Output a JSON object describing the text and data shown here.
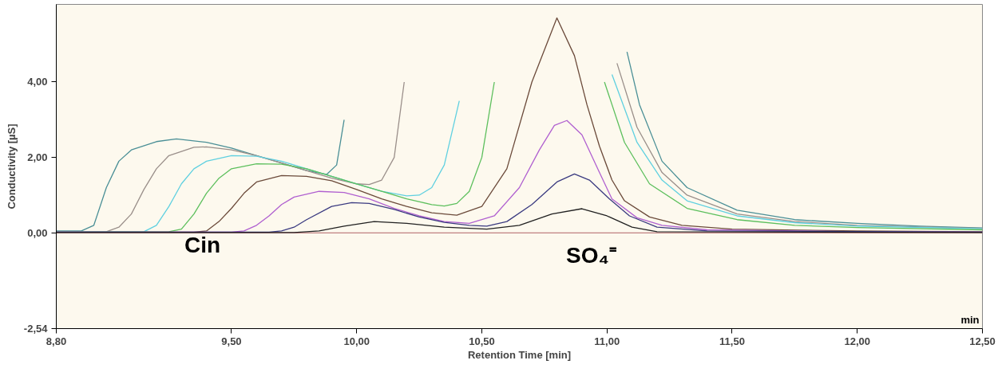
{
  "chart_data": {
    "type": "line",
    "xlabel": "Retention Time [min]",
    "ylabel": "Conductivity [µS]",
    "xlim": [
      8.8,
      12.5
    ],
    "ylim": [
      -2.54,
      6.06
    ],
    "xticks": [
      {
        "value": 8.8,
        "label": "8,80"
      },
      {
        "value": 9.5,
        "label": "9,50"
      },
      {
        "value": 10.0,
        "label": "10,00"
      },
      {
        "value": 10.5,
        "label": "10,50"
      },
      {
        "value": 11.0,
        "label": "11,00"
      },
      {
        "value": 11.5,
        "label": "11,50"
      },
      {
        "value": 12.0,
        "label": "12,00"
      },
      {
        "value": 12.5,
        "label": "12,50"
      }
    ],
    "yticks": [
      {
        "value": -2.54,
        "label": "-2,54"
      },
      {
        "value": 0,
        "label": "0,00"
      },
      {
        "value": 2,
        "label": "2,00"
      },
      {
        "value": 4,
        "label": "4,00"
      }
    ],
    "grid": false,
    "marker": "none",
    "line_style": "solid",
    "annotations": [
      "Cin",
      "SO₄⁼",
      "min"
    ],
    "series": [
      {
        "color": "#c08080",
        "x": [
          8.8,
          12.5
        ],
        "values": [
          0,
          0
        ]
      },
      {
        "color": "#4a8f96",
        "x": [
          8.8,
          8.9,
          8.95,
          9.0,
          9.05,
          9.1,
          9.2,
          9.28,
          9.4,
          9.5,
          9.6,
          9.7,
          9.8,
          9.88,
          9.92,
          9.95,
          9.97,
          10.0,
          10.9,
          11.03,
          11.08,
          11.13,
          11.22,
          11.32,
          11.52,
          11.75,
          12.0,
          12.25,
          12.5
        ],
        "values": [
          0.05,
          0.05,
          0.2,
          1.2,
          1.9,
          2.2,
          2.42,
          2.49,
          2.4,
          2.25,
          2.05,
          1.85,
          1.65,
          1.55,
          1.8,
          3.0,
          null,
          null,
          null,
          null,
          4.8,
          3.4,
          1.9,
          1.2,
          0.6,
          0.35,
          0.25,
          0.18,
          0.13
        ]
      },
      {
        "color": "#9a8f8a",
        "x": [
          8.8,
          9.0,
          9.05,
          9.1,
          9.15,
          9.2,
          9.25,
          9.35,
          9.4,
          9.5,
          9.6,
          9.7,
          9.8,
          9.9,
          10.0,
          10.05,
          10.1,
          10.15,
          10.19,
          10.21,
          10.5,
          10.99,
          11.04,
          11.12,
          11.22,
          11.32,
          11.52,
          11.75,
          12.0,
          12.5
        ],
        "values": [
          0.02,
          0.03,
          0.15,
          0.5,
          1.15,
          1.7,
          2.05,
          2.27,
          2.28,
          2.2,
          2.05,
          1.85,
          1.65,
          1.45,
          1.3,
          1.28,
          1.4,
          2.0,
          4.0,
          null,
          null,
          null,
          4.5,
          2.8,
          1.6,
          1.0,
          0.5,
          0.3,
          0.2,
          0.12
        ]
      },
      {
        "color": "#5fd0e0",
        "x": [
          8.8,
          9.15,
          9.2,
          9.25,
          9.3,
          9.35,
          9.4,
          9.5,
          9.6,
          9.7,
          9.8,
          9.9,
          10.0,
          10.1,
          10.2,
          10.25,
          10.3,
          10.35,
          10.41,
          10.44,
          10.7,
          10.95,
          11.02,
          11.12,
          11.22,
          11.32,
          11.52,
          11.75,
          12.0,
          12.5
        ],
        "values": [
          0.02,
          0.03,
          0.2,
          0.7,
          1.3,
          1.7,
          1.9,
          2.05,
          2.03,
          1.9,
          1.7,
          1.5,
          1.3,
          1.1,
          0.98,
          1.0,
          1.2,
          1.8,
          3.5,
          null,
          null,
          null,
          4.2,
          2.4,
          1.4,
          0.85,
          0.45,
          0.27,
          0.18,
          0.11
        ]
      },
      {
        "color": "#5cbf5c",
        "x": [
          8.8,
          9.25,
          9.3,
          9.35,
          9.4,
          9.45,
          9.5,
          9.6,
          9.7,
          9.8,
          9.9,
          10.0,
          10.1,
          10.2,
          10.3,
          10.35,
          10.4,
          10.45,
          10.5,
          10.55,
          10.57,
          10.75,
          10.92,
          10.99,
          11.07,
          11.17,
          11.32,
          11.52,
          11.75,
          12.0,
          12.5
        ],
        "values": [
          0.02,
          0.03,
          0.1,
          0.5,
          1.05,
          1.45,
          1.7,
          1.83,
          1.82,
          1.7,
          1.5,
          1.3,
          1.1,
          0.9,
          0.75,
          0.71,
          0.78,
          1.1,
          2.0,
          4.0,
          null,
          null,
          null,
          4.0,
          2.4,
          1.3,
          0.65,
          0.35,
          0.2,
          0.14,
          0.08
        ]
      },
      {
        "color": "#6b4a3a",
        "x": [
          8.8,
          9.35,
          9.4,
          9.45,
          9.5,
          9.55,
          9.6,
          9.7,
          9.8,
          9.9,
          10.0,
          10.1,
          10.2,
          10.3,
          10.4,
          10.5,
          10.6,
          10.7,
          10.8,
          10.87,
          10.92,
          10.97,
          11.02,
          11.07,
          11.17,
          11.3,
          11.5,
          12.0,
          12.5
        ],
        "values": [
          0.02,
          0.02,
          0.05,
          0.3,
          0.65,
          1.05,
          1.35,
          1.52,
          1.5,
          1.38,
          1.15,
          0.9,
          0.7,
          0.53,
          0.47,
          0.7,
          1.7,
          4.0,
          5.7,
          4.7,
          3.4,
          2.3,
          1.4,
          0.85,
          0.42,
          0.2,
          0.1,
          0.05,
          0.03
        ]
      },
      {
        "color": "#b060d0",
        "x": [
          8.8,
          9.5,
          9.55,
          9.6,
          9.65,
          9.7,
          9.75,
          9.85,
          9.95,
          10.05,
          10.15,
          10.25,
          10.35,
          10.45,
          10.55,
          10.65,
          10.73,
          10.79,
          10.84,
          10.9,
          10.97,
          11.02,
          11.12,
          11.22,
          11.4,
          12.0,
          12.5
        ],
        "values": [
          0.02,
          0.02,
          0.05,
          0.2,
          0.45,
          0.75,
          0.95,
          1.1,
          1.07,
          0.9,
          0.65,
          0.45,
          0.3,
          0.25,
          0.45,
          1.2,
          2.2,
          2.85,
          2.98,
          2.6,
          1.6,
          0.9,
          0.4,
          0.2,
          0.08,
          0.03,
          0.02
        ]
      },
      {
        "color": "#3a3a80",
        "x": [
          8.8,
          9.65,
          9.7,
          9.75,
          9.8,
          9.9,
          9.98,
          10.05,
          10.15,
          10.25,
          10.35,
          10.45,
          10.52,
          10.6,
          10.7,
          10.8,
          10.87,
          10.93,
          11.01,
          11.09,
          11.2,
          11.4,
          12.5
        ],
        "values": [
          0.02,
          0.02,
          0.05,
          0.15,
          0.35,
          0.7,
          0.8,
          0.78,
          0.62,
          0.42,
          0.28,
          0.2,
          0.18,
          0.3,
          0.75,
          1.35,
          1.56,
          1.4,
          0.9,
          0.45,
          0.15,
          0.05,
          0.02
        ]
      },
      {
        "color": "#202020",
        "x": [
          8.8,
          9.75,
          9.85,
          9.95,
          10.07,
          10.2,
          10.35,
          10.52,
          10.65,
          10.78,
          10.9,
          11.0,
          11.1,
          11.2,
          12.5
        ],
        "values": [
          0.01,
          0.01,
          0.05,
          0.18,
          0.3,
          0.25,
          0.15,
          0.1,
          0.2,
          0.5,
          0.64,
          0.45,
          0.15,
          0.03,
          0.01
        ]
      }
    ]
  }
}
